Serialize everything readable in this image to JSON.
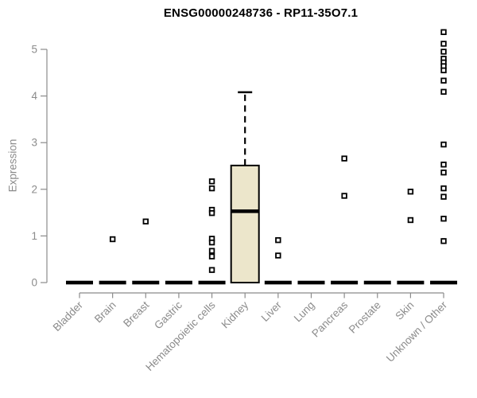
{
  "chart_data": {
    "type": "boxplot",
    "title": "ENSG00000248736 - RP11-35O7.1",
    "ylabel": "Expression",
    "xlabel": "",
    "ylim": [
      0,
      5.5
    ],
    "yticks": [
      0,
      1,
      2,
      3,
      4,
      5
    ],
    "grid": false,
    "legend": false,
    "colors": {
      "background": "#ffffff",
      "box_fill": "#ece6cb",
      "box_stroke": "#000000",
      "median": "#000000",
      "whisker": "#000000",
      "outlier_stroke": "#000000",
      "outlier_fill": "#ffffff",
      "axis": "#8b8b8b",
      "tick_label": "#8b8b8b",
      "title": "#000000"
    },
    "categories": [
      "Bladder",
      "Brain",
      "Breast",
      "Gastric",
      "Hematopoietic cells",
      "Kidney",
      "Liver",
      "Lung",
      "Pancreas",
      "Prostate",
      "Skin",
      "Unknown / Other"
    ],
    "series": [
      {
        "category": "Bladder",
        "q1": 0,
        "median": 0,
        "q3": 0,
        "whisker_low": 0,
        "whisker_high": 0,
        "outliers": []
      },
      {
        "category": "Brain",
        "q1": 0,
        "median": 0,
        "q3": 0,
        "whisker_low": 0,
        "whisker_high": 0,
        "outliers": [
          0.93
        ]
      },
      {
        "category": "Breast",
        "q1": 0,
        "median": 0,
        "q3": 0,
        "whisker_low": 0,
        "whisker_high": 0,
        "outliers": [
          1.31
        ]
      },
      {
        "category": "Gastric",
        "q1": 0,
        "median": 0,
        "q3": 0,
        "whisker_low": 0,
        "whisker_high": 0,
        "outliers": []
      },
      {
        "category": "Hematopoietic cells",
        "q1": 0,
        "median": 0,
        "q3": 0,
        "whisker_low": 0,
        "whisker_high": 0,
        "outliers": [
          2.17,
          2.02,
          1.56,
          1.49,
          0.94,
          0.86,
          0.68,
          0.56,
          0.27
        ]
      },
      {
        "category": "Kidney",
        "q1": 0,
        "median": 1.53,
        "q3": 2.51,
        "whisker_low": 0,
        "whisker_high": 4.08,
        "outliers": []
      },
      {
        "category": "Liver",
        "q1": 0,
        "median": 0,
        "q3": 0,
        "whisker_low": 0,
        "whisker_high": 0,
        "outliers": [
          0.91,
          0.58
        ]
      },
      {
        "category": "Lung",
        "q1": 0,
        "median": 0,
        "q3": 0,
        "whisker_low": 0,
        "whisker_high": 0,
        "outliers": []
      },
      {
        "category": "Pancreas",
        "q1": 0,
        "median": 0,
        "q3": 0,
        "whisker_low": 0,
        "whisker_high": 0,
        "outliers": [
          2.66,
          1.86
        ]
      },
      {
        "category": "Prostate",
        "q1": 0,
        "median": 0,
        "q3": 0,
        "whisker_low": 0,
        "whisker_high": 0,
        "outliers": []
      },
      {
        "category": "Skin",
        "q1": 0,
        "median": 0,
        "q3": 0,
        "whisker_low": 0,
        "whisker_high": 0,
        "outliers": [
          1.95,
          1.34
        ]
      },
      {
        "category": "Unknown / Other",
        "q1": 0,
        "median": 0,
        "q3": 0,
        "whisker_low": 0,
        "whisker_high": 0,
        "outliers": [
          5.37,
          5.12,
          4.95,
          4.8,
          4.72,
          4.64,
          4.55,
          4.33,
          4.09,
          2.96,
          2.53,
          2.36,
          2.02,
          1.84,
          1.37,
          0.89
        ]
      }
    ]
  }
}
